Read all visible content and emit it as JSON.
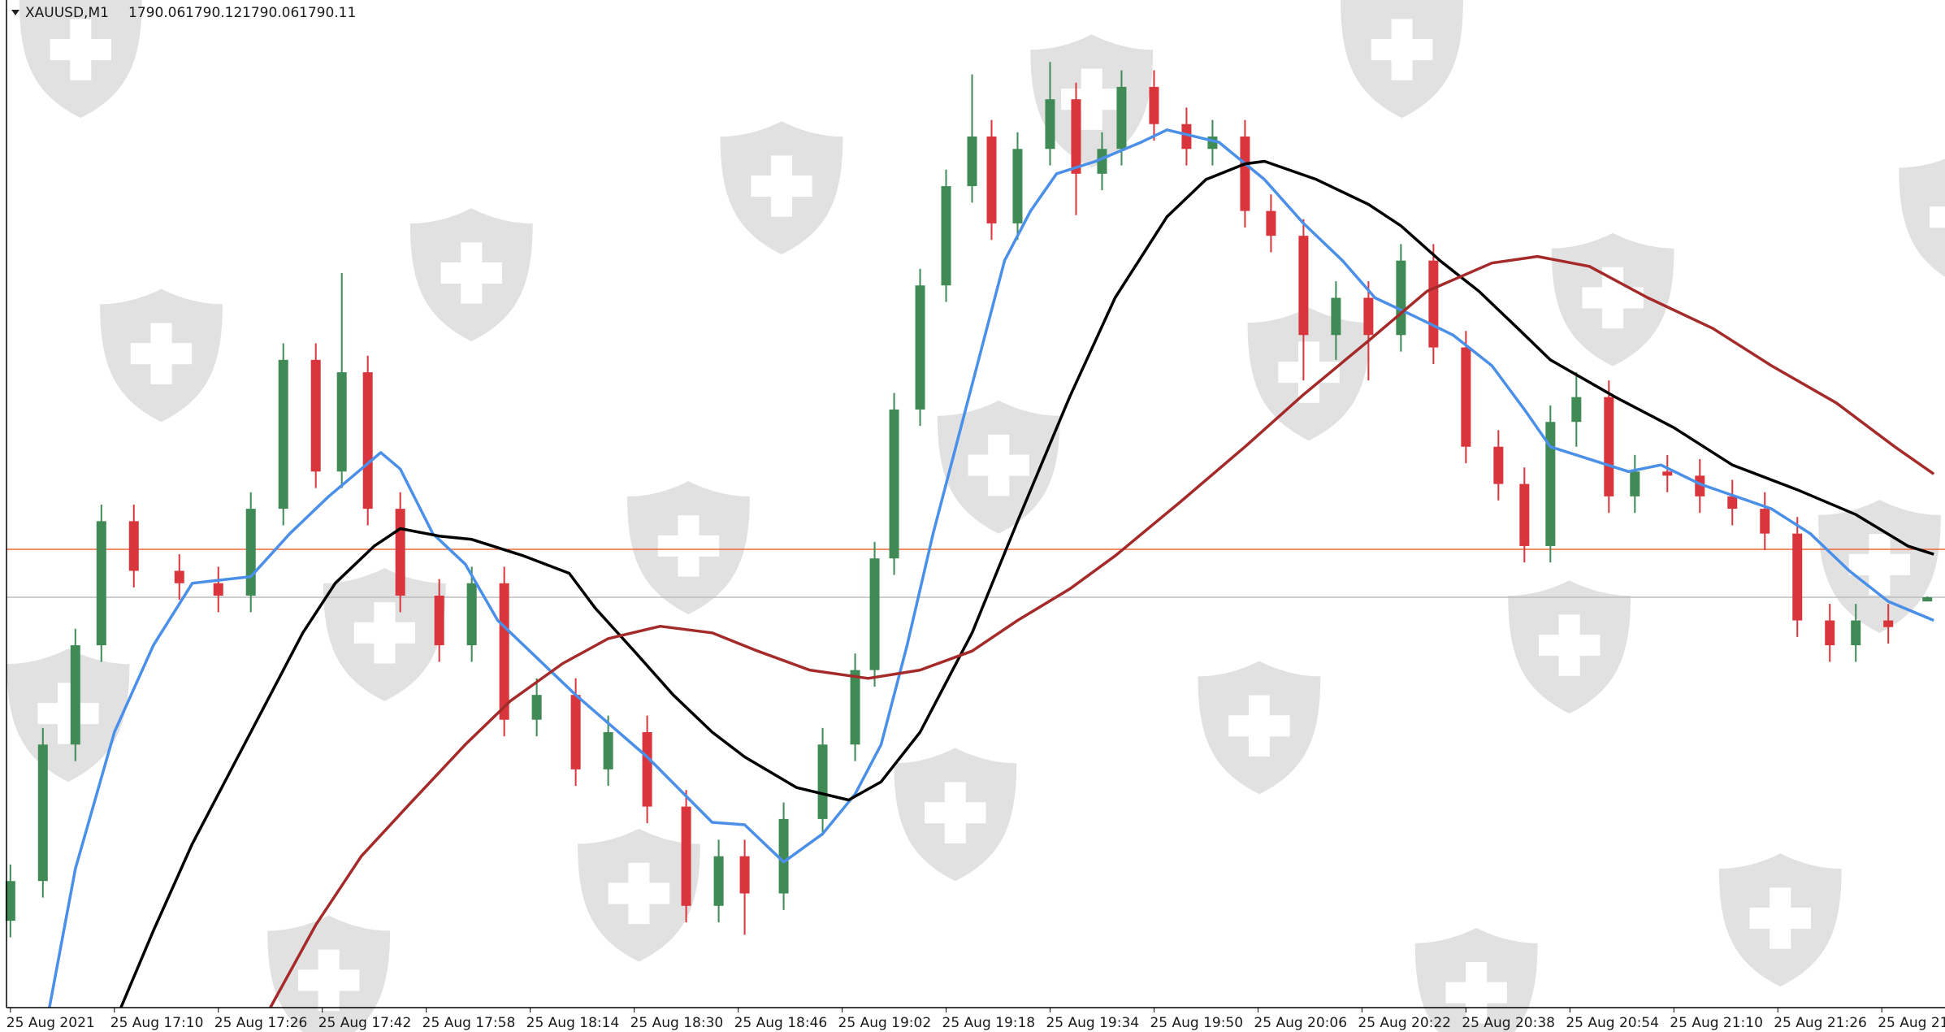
{
  "chart_data": {
    "type": "candlestick",
    "symbol": "XAUUSD,M1",
    "header_values": [
      1790.06,
      1790.12,
      1790.06,
      1790.11
    ],
    "up_color": "#3f8a55",
    "down_color": "#d8353d",
    "xlim": [
      -0.6,
      296.6
    ],
    "ylim": [
      1785.15,
      1797.33
    ],
    "xticks": [
      {
        "value": 0,
        "label": "25 Aug 2021"
      },
      {
        "value": 16,
        "label": "25 Aug 17:10"
      },
      {
        "value": 32,
        "label": "25 Aug 17:26"
      },
      {
        "value": 48,
        "label": "25 Aug 17:42"
      },
      {
        "value": 64,
        "label": "25 Aug 17:58"
      },
      {
        "value": 80,
        "label": "25 Aug 18:14"
      },
      {
        "value": 96,
        "label": "25 Aug 18:30"
      },
      {
        "value": 112,
        "label": "25 Aug 18:46"
      },
      {
        "value": 128,
        "label": "25 Aug 19:02"
      },
      {
        "value": 144,
        "label": "25 Aug 19:18"
      },
      {
        "value": 160,
        "label": "25 Aug 19:34"
      },
      {
        "value": 176,
        "label": "25 Aug 19:50"
      },
      {
        "value": 192,
        "label": "25 Aug 20:06"
      },
      {
        "value": 208,
        "label": "25 Aug 20:22"
      },
      {
        "value": 224,
        "label": "25 Aug 20:38"
      },
      {
        "value": 240,
        "label": "25 Aug 20:54"
      },
      {
        "value": 256,
        "label": "25 Aug 21:10"
      },
      {
        "value": 272,
        "label": "25 Aug 21:26"
      },
      {
        "value": 288,
        "label": "25 Aug 21"
      }
    ],
    "x": [
      0,
      5,
      10,
      14,
      19,
      26,
      32,
      37,
      42,
      47,
      51,
      55,
      60,
      66,
      71,
      76,
      81,
      87,
      92,
      98,
      104,
      109,
      113,
      119,
      125,
      130,
      133,
      136,
      140,
      144,
      148,
      151,
      155,
      160,
      164,
      168,
      171,
      176,
      181,
      185,
      190,
      194,
      199,
      204,
      209,
      214,
      219,
      224,
      229,
      233,
      237,
      241,
      246,
      250,
      255,
      260,
      265,
      270,
      275,
      280,
      284,
      289,
      295
    ],
    "open": [
      1786.2,
      1786.68,
      1788.33,
      1789.53,
      1791.03,
      1790.43,
      1790.28,
      1790.13,
      1791.18,
      1792.98,
      1791.63,
      1792.83,
      1791.18,
      1790.13,
      1789.53,
      1790.28,
      1788.63,
      1788.93,
      1788.03,
      1788.48,
      1787.58,
      1786.38,
      1786.98,
      1786.53,
      1787.43,
      1788.33,
      1789.23,
      1790.58,
      1792.38,
      1793.88,
      1795.08,
      1795.68,
      1794.63,
      1795.53,
      1796.13,
      1795.23,
      1795.53,
      1796.28,
      1795.83,
      1795.53,
      1795.68,
      1794.78,
      1794.48,
      1793.28,
      1793.73,
      1793.28,
      1794.18,
      1793.13,
      1791.93,
      1791.48,
      1790.73,
      1792.23,
      1792.53,
      1791.33,
      1791.63,
      1791.58,
      1791.33,
      1791.18,
      1790.88,
      1789.83,
      1789.53,
      1789.83,
      1790.06
    ],
    "high": [
      1786.88,
      1788.53,
      1789.73,
      1791.23,
      1791.23,
      1790.63,
      1790.48,
      1791.38,
      1793.18,
      1793.18,
      1794.03,
      1793.03,
      1791.38,
      1790.33,
      1790.48,
      1790.48,
      1789.13,
      1789.13,
      1788.68,
      1788.68,
      1787.78,
      1787.18,
      1787.18,
      1787.63,
      1788.53,
      1789.43,
      1790.78,
      1792.58,
      1794.08,
      1795.28,
      1796.43,
      1795.88,
      1795.73,
      1796.58,
      1796.33,
      1795.73,
      1796.48,
      1796.48,
      1796.03,
      1795.88,
      1795.88,
      1794.98,
      1794.68,
      1793.93,
      1793.93,
      1794.38,
      1794.38,
      1793.33,
      1792.13,
      1791.68,
      1792.43,
      1792.83,
      1792.73,
      1791.83,
      1791.83,
      1791.78,
      1791.53,
      1791.38,
      1791.08,
      1790.03,
      1790.03,
      1790.03,
      1790.12
    ],
    "low": [
      1786.0,
      1786.48,
      1788.13,
      1789.33,
      1790.23,
      1790.08,
      1789.93,
      1789.93,
      1790.98,
      1791.43,
      1791.43,
      1790.98,
      1789.93,
      1789.33,
      1789.33,
      1788.43,
      1788.43,
      1787.83,
      1787.83,
      1787.38,
      1786.18,
      1786.18,
      1786.03,
      1786.33,
      1787.23,
      1788.13,
      1789.03,
      1790.38,
      1792.18,
      1793.68,
      1794.88,
      1794.43,
      1794.43,
      1795.33,
      1794.73,
      1795.03,
      1795.33,
      1795.63,
      1795.33,
      1795.33,
      1794.58,
      1794.28,
      1792.73,
      1792.98,
      1792.73,
      1793.08,
      1792.93,
      1791.73,
      1791.28,
      1790.53,
      1790.53,
      1791.93,
      1791.13,
      1791.13,
      1791.38,
      1791.13,
      1790.98,
      1790.68,
      1789.63,
      1789.33,
      1789.33,
      1789.55,
      1790.06
    ],
    "close": [
      1786.68,
      1788.33,
      1789.53,
      1791.03,
      1790.43,
      1790.28,
      1790.13,
      1791.18,
      1792.98,
      1791.63,
      1792.83,
      1791.18,
      1790.13,
      1789.53,
      1790.28,
      1788.63,
      1788.93,
      1788.03,
      1788.48,
      1787.58,
      1786.38,
      1786.98,
      1786.53,
      1787.43,
      1788.33,
      1789.23,
      1790.58,
      1792.38,
      1793.88,
      1795.08,
      1795.68,
      1794.63,
      1795.53,
      1796.13,
      1795.23,
      1795.53,
      1796.28,
      1795.83,
      1795.53,
      1795.68,
      1794.78,
      1794.48,
      1793.28,
      1793.73,
      1793.28,
      1794.18,
      1793.13,
      1791.93,
      1791.48,
      1790.73,
      1792.23,
      1792.53,
      1791.33,
      1791.63,
      1791.58,
      1791.33,
      1791.18,
      1790.88,
      1789.83,
      1789.53,
      1789.83,
      1789.75,
      1790.11
    ],
    "series": [
      {
        "color": "#4a8fe8",
        "x": [
          6,
          10,
          16,
          22,
          28,
          37,
          43,
          49,
          57,
          60,
          65,
          70,
          75,
          87,
          98,
          108,
          113,
          119,
          125,
          130,
          134,
          138,
          142,
          146,
          150,
          153,
          157,
          161,
          167,
          174,
          178,
          186,
          193,
          199,
          205,
          210,
          216,
          222,
          228,
          233,
          237,
          249,
          254,
          260,
          271,
          277,
          283,
          289,
          296
        ],
        "values": [
          1785.15,
          1786.83,
          1788.48,
          1789.53,
          1790.28,
          1790.36,
          1790.88,
          1791.33,
          1791.86,
          1791.66,
          1790.88,
          1790.51,
          1789.83,
          1788.93,
          1788.18,
          1787.39,
          1787.36,
          1786.91,
          1787.25,
          1787.73,
          1788.33,
          1789.53,
          1790.88,
          1792.08,
          1793.28,
          1794.18,
          1794.78,
          1795.23,
          1795.38,
          1795.61,
          1795.76,
          1795.61,
          1795.16,
          1794.63,
          1794.18,
          1793.73,
          1793.51,
          1793.28,
          1792.91,
          1792.38,
          1791.93,
          1791.63,
          1791.71,
          1791.48,
          1791.18,
          1790.88,
          1790.43,
          1790.06,
          1789.83
        ]
      },
      {
        "color": "#000000",
        "x": [
          17,
          22,
          28,
          37,
          45,
          50,
          56,
          60,
          66,
          71,
          79,
          86,
          90,
          96,
          102,
          108,
          113,
          121,
          129,
          134,
          140,
          148,
          155,
          163,
          170,
          178,
          184,
          190,
          193,
          201,
          209,
          214,
          220,
          226,
          232,
          237,
          247,
          256,
          265,
          275,
          284,
          292,
          296
        ],
        "values": [
          1785.15,
          1786.08,
          1787.13,
          1788.48,
          1789.68,
          1790.28,
          1790.73,
          1790.94,
          1790.85,
          1790.81,
          1790.61,
          1790.4,
          1789.98,
          1789.46,
          1788.93,
          1788.48,
          1788.18,
          1787.81,
          1787.66,
          1787.88,
          1788.48,
          1789.68,
          1791.03,
          1792.53,
          1793.73,
          1794.71,
          1795.16,
          1795.35,
          1795.38,
          1795.16,
          1794.86,
          1794.6,
          1794.18,
          1793.81,
          1793.36,
          1792.98,
          1792.53,
          1792.16,
          1791.71,
          1791.41,
          1791.11,
          1790.73,
          1790.63
        ]
      },
      {
        "color": "#a52a2a",
        "x": [
          40,
          47,
          54,
          62,
          70,
          77,
          85,
          92,
          100,
          108,
          115,
          123,
          132,
          140,
          148,
          155,
          163,
          170,
          180,
          190,
          199,
          209,
          218,
          228,
          235,
          243,
          252,
          262,
          271,
          281,
          290,
          296
        ],
        "values": [
          1785.15,
          1786.15,
          1786.98,
          1787.66,
          1788.33,
          1788.86,
          1789.31,
          1789.61,
          1789.76,
          1789.68,
          1789.46,
          1789.23,
          1789.13,
          1789.23,
          1789.46,
          1789.83,
          1790.21,
          1790.61,
          1791.26,
          1791.93,
          1792.56,
          1793.21,
          1793.81,
          1794.15,
          1794.23,
          1794.11,
          1793.73,
          1793.36,
          1792.91,
          1792.46,
          1791.93,
          1791.6
        ]
      }
    ],
    "hlines": [
      {
        "value": 1790.69,
        "color": "#e8683a"
      },
      {
        "value": 1790.11,
        "color": "#bdbdbd"
      }
    ]
  }
}
